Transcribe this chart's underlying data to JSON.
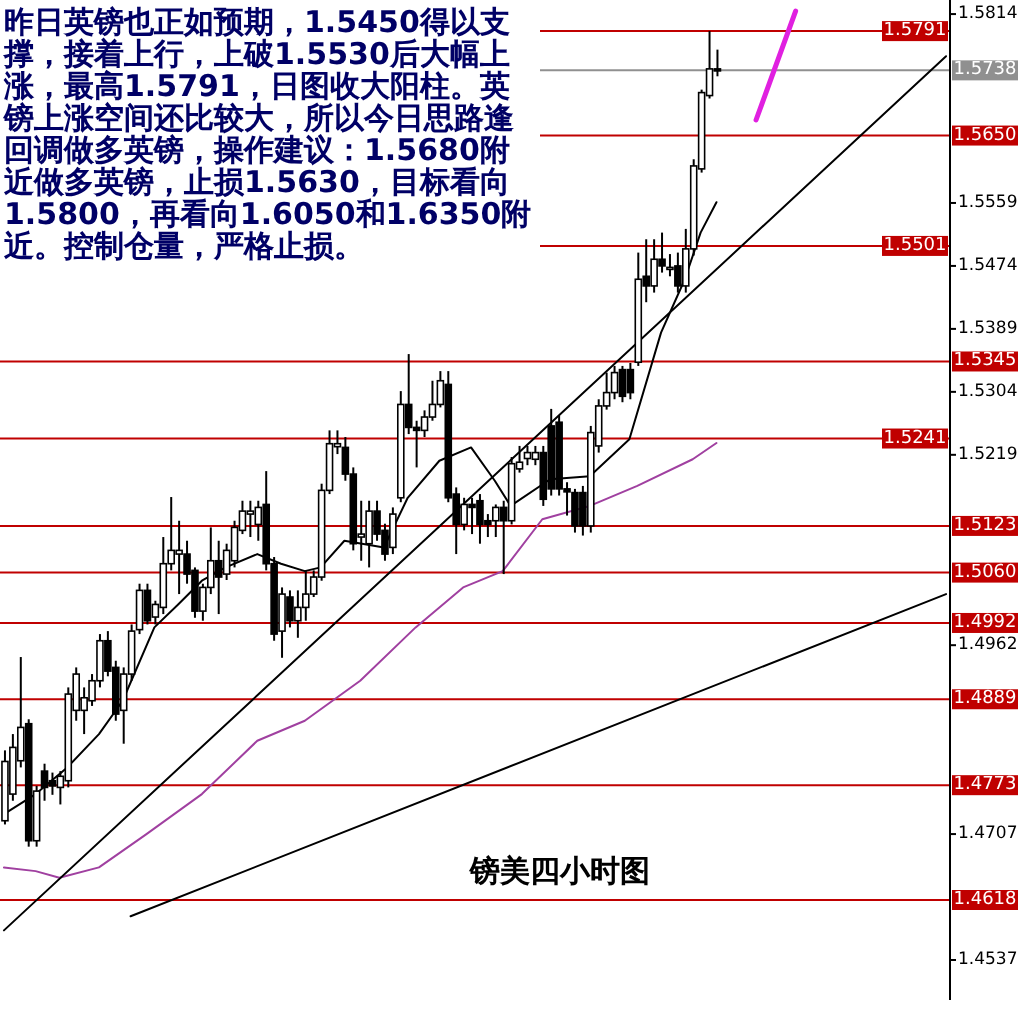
{
  "chart_data": {
    "type": "candlestick",
    "annotations": [
      "昨日英镑也正如预期，1.5450得以支撑，接着上行，上破1.5530后大幅上涨，最高1.5791，日图收大阳柱。英镑上涨空间还比较大，所以今日思路逢回调做多英镑，操作建议：1.5680附近做多英镑，止损1.5630，目标看向1.5800，再看向1.6050和1.6350附近。控制仓量，严格止损。",
      "镑美四小时图"
    ],
    "categories": [
      null,
      null,
      null,
      null,
      null,
      null,
      null,
      null,
      null,
      null,
      null,
      null,
      null,
      null,
      null,
      null,
      null,
      null,
      null,
      null,
      null,
      null,
      null,
      null,
      null,
      null,
      null,
      null,
      null,
      null,
      null,
      null,
      null,
      null,
      null,
      null,
      null,
      null,
      null,
      null,
      null,
      null,
      null,
      null,
      null,
      null,
      null,
      null,
      null,
      null,
      null,
      null,
      null,
      null,
      null,
      null,
      null,
      null,
      null,
      null,
      null,
      null,
      null,
      null,
      null,
      null,
      null,
      null,
      null,
      null,
      null,
      null,
      null,
      null,
      null,
      null,
      null,
      null,
      null,
      null,
      null,
      null,
      null,
      null,
      null,
      null,
      null,
      null,
      null,
      null,
      null,
      null,
      null,
      null,
      null,
      null,
      null,
      null,
      null,
      null,
      null,
      null,
      null,
      null,
      null,
      null,
      null,
      null,
      null,
      null,
      null,
      null,
      null,
      null,
      null,
      null,
      null,
      null,
      null,
      null
    ],
    "ohlc": [
      [
        1.4725,
        1.482,
        1.472,
        1.4805
      ],
      [
        1.4761,
        1.4842,
        1.4752,
        1.4824
      ],
      [
        1.4806,
        1.4946,
        1.4797,
        1.4851
      ],
      [
        1.4856,
        1.4862,
        1.469,
        1.4698
      ],
      [
        1.4698,
        1.4772,
        1.469,
        1.4765
      ],
      [
        1.4792,
        1.4802,
        1.4752,
        1.477
      ],
      [
        1.4779,
        1.479,
        1.476,
        1.4772
      ],
      [
        1.477,
        1.4792,
        1.4747,
        1.4785
      ],
      [
        1.4779,
        1.4905,
        1.477,
        1.4896
      ],
      [
        1.4874,
        1.4932,
        1.486,
        1.4923
      ],
      [
        1.4874,
        1.4905,
        1.4842,
        1.4891
      ],
      [
        1.4887,
        1.4923,
        1.488,
        1.4914
      ],
      [
        1.4914,
        1.4977,
        1.4905,
        1.4968
      ],
      [
        1.4968,
        1.4981,
        1.492,
        1.4927
      ],
      [
        1.4932,
        1.4941,
        1.486,
        1.4869
      ],
      [
        1.4874,
        1.4932,
        1.4829,
        1.4923
      ],
      [
        1.4923,
        1.499,
        1.4914,
        1.4981
      ],
      [
        1.4983,
        1.5045,
        1.4977,
        1.5036
      ],
      [
        1.5036,
        1.5045,
        1.499,
        1.4995
      ],
      [
        1.5,
        1.5022,
        1.499,
        1.5017
      ],
      [
        1.5013,
        1.5108,
        1.5004,
        1.5072
      ],
      [
        1.5072,
        1.5162,
        1.5063,
        1.509
      ],
      [
        1.5085,
        1.513,
        1.5031,
        1.509
      ],
      [
        1.5085,
        1.5103,
        1.5045,
        1.5058
      ],
      [
        1.5063,
        1.5067,
        1.4999,
        1.5008
      ],
      [
        1.5008,
        1.5045,
        1.4995,
        1.504
      ],
      [
        1.504,
        1.5121,
        1.5031,
        1.5076
      ],
      [
        1.5076,
        1.5103,
        1.5004,
        1.5054
      ],
      [
        1.5058,
        1.5099,
        1.505,
        1.509
      ],
      [
        1.5076,
        1.513,
        1.5067,
        1.5121
      ],
      [
        1.5117,
        1.5157,
        1.5112,
        1.5143
      ],
      [
        1.5139,
        1.5157,
        1.5108,
        1.5143
      ],
      [
        1.5125,
        1.5157,
        1.5103,
        1.5148
      ],
      [
        1.5152,
        1.5197,
        1.5063,
        1.5072
      ],
      [
        1.5072,
        1.5081,
        1.4968,
        1.4977
      ],
      [
        1.4981,
        1.504,
        1.4945,
        1.5031
      ],
      [
        1.5027,
        1.5036,
        1.4986,
        1.4995
      ],
      [
        1.4995,
        1.5036,
        1.4972,
        1.5013
      ],
      [
        1.5013,
        1.5063,
        1.4995,
        1.5031
      ],
      [
        1.5031,
        1.5063,
        1.5027,
        1.5054
      ],
      [
        1.5054,
        1.518,
        1.5049,
        1.5171
      ],
      [
        1.5171,
        1.5252,
        1.5166,
        1.5234
      ],
      [
        1.523,
        1.5252,
        1.522,
        1.5234
      ],
      [
        1.5229,
        1.5243,
        1.5184,
        1.5193
      ],
      [
        1.5193,
        1.5202,
        1.509,
        1.5099
      ],
      [
        1.5108,
        1.5157,
        1.5076,
        1.5112
      ],
      [
        1.5099,
        1.5157,
        1.5067,
        1.5143
      ],
      [
        1.5143,
        1.5157,
        1.5103,
        1.5112
      ],
      [
        1.5117,
        1.5126,
        1.5076,
        1.5085
      ],
      [
        1.5094,
        1.5148,
        1.5085,
        1.5139
      ],
      [
        1.5161,
        1.5305,
        1.5155,
        1.5287
      ],
      [
        1.5287,
        1.5355,
        1.5247,
        1.5256
      ],
      [
        1.5256,
        1.5265,
        1.5202,
        1.5252
      ],
      [
        1.5252,
        1.5279,
        1.5243,
        1.527
      ],
      [
        1.527,
        1.5319,
        1.5265,
        1.5287
      ],
      [
        1.5287,
        1.5332,
        1.5283,
        1.5319
      ],
      [
        1.5314,
        1.5332,
        1.5155,
        1.5161
      ],
      [
        1.5166,
        1.5175,
        1.5085,
        1.5125
      ],
      [
        1.5125,
        1.5161,
        1.5117,
        1.5152
      ],
      [
        1.5152,
        1.5161,
        1.5112,
        1.5148
      ],
      [
        1.5157,
        1.5166,
        1.5099,
        1.5125
      ],
      [
        1.513,
        1.5139,
        1.5108,
        1.5125
      ],
      [
        1.513,
        1.5152,
        1.5108,
        1.5148
      ],
      [
        1.5148,
        1.5157,
        1.5058,
        1.513
      ],
      [
        1.513,
        1.5216,
        1.5125,
        1.5207
      ],
      [
        1.52,
        1.5231,
        1.5195,
        1.5209
      ],
      [
        1.5214,
        1.5231,
        1.5205,
        1.5222
      ],
      [
        1.5213,
        1.5231,
        1.5205,
        1.5222
      ],
      [
        1.5222,
        1.5231,
        1.515,
        1.5159
      ],
      [
        1.5258,
        1.5281,
        1.5164,
        1.5173
      ],
      [
        1.5263,
        1.5272,
        1.5164,
        1.5173
      ],
      [
        1.5173,
        1.5182,
        1.5137,
        1.5169
      ],
      [
        1.5168,
        1.5173,
        1.5114,
        1.5123
      ],
      [
        1.5168,
        1.5177,
        1.511,
        1.5123
      ],
      [
        1.5123,
        1.5258,
        1.5114,
        1.5249
      ],
      [
        1.5231,
        1.5294,
        1.5222,
        1.5285
      ],
      [
        1.5285,
        1.533,
        1.528,
        1.5303
      ],
      [
        1.5303,
        1.5339,
        1.5294,
        1.533
      ],
      [
        1.5334,
        1.5339,
        1.529,
        1.5298
      ],
      [
        1.5334,
        1.5343,
        1.5294,
        1.5303
      ],
      [
        1.5344,
        1.5492,
        1.5339,
        1.5456
      ],
      [
        1.546,
        1.551,
        1.5425,
        1.5447
      ],
      [
        1.5447,
        1.551,
        1.5438,
        1.5483
      ],
      [
        1.5483,
        1.5519,
        1.5465,
        1.5474
      ],
      [
        1.547,
        1.549,
        1.546,
        1.5472
      ],
      [
        1.5474,
        1.5492,
        1.5438,
        1.5447
      ],
      [
        1.5447,
        1.5524,
        1.5438,
        1.5497
      ],
      [
        1.5497,
        1.5618,
        1.5488,
        1.5609
      ],
      [
        1.5605,
        1.5712,
        1.56,
        1.5708
      ],
      [
        1.5704,
        1.5791,
        1.57,
        1.574
      ],
      [
        1.574,
        1.5766,
        1.573,
        1.5738
      ],
      null,
      null,
      null,
      null,
      null,
      null,
      null,
      null,
      null,
      null,
      null,
      null,
      null,
      null,
      null,
      null,
      null,
      null,
      null,
      null,
      null,
      null,
      null,
      null,
      null,
      null,
      null,
      null,
      null
    ],
    "series": [
      {
        "type": "line",
        "color": "#000000",
        "values": [
          1.4734,
          null,
          null,
          null,
          1.4761,
          null,
          null,
          null,
          1.4797,
          null,
          null,
          null,
          1.4842,
          null,
          null,
          1.4887,
          null,
          null,
          null,
          1.4986,
          null,
          null,
          1.5017,
          null,
          null,
          1.5049,
          null,
          null,
          1.5067,
          null,
          null,
          null,
          1.5085,
          null,
          null,
          1.5072,
          null,
          null,
          1.5062,
          null,
          1.5067,
          null,
          null,
          1.5103,
          null,
          null,
          null,
          null,
          1.5094,
          null,
          null,
          1.5161,
          null,
          null,
          null,
          1.5211,
          null,
          null,
          null,
          1.5229,
          null,
          null,
          1.5184,
          null,
          1.515,
          null,
          null,
          null,
          null,
          1.5186,
          null,
          null,
          null,
          null,
          1.519,
          null,
          null,
          null,
          null,
          1.524,
          null,
          null,
          null,
          1.5384,
          null,
          null,
          1.5456,
          null,
          1.5519,
          null,
          1.556,
          null,
          null,
          null,
          null,
          null,
          null,
          null,
          null,
          null,
          null,
          null,
          null,
          null,
          null,
          null,
          null,
          null,
          null,
          null,
          null,
          null,
          null,
          null,
          null,
          null,
          null,
          null,
          null,
          null
        ]
      },
      {
        "type": "line",
        "color": "#a040a0",
        "values": [
          1.4662,
          null,
          null,
          null,
          1.4657,
          null,
          null,
          1.4648,
          null,
          null,
          null,
          null,
          1.4662,
          null,
          null,
          null,
          null,
          null,
          1.4707,
          null,
          null,
          null,
          null,
          null,
          null,
          1.4761,
          null,
          null,
          null,
          null,
          null,
          null,
          1.4833,
          null,
          null,
          null,
          null,
          null,
          1.486,
          null,
          null,
          null,
          null,
          null,
          null,
          1.4914,
          null,
          null,
          null,
          null,
          null,
          null,
          1.4986,
          null,
          null,
          null,
          null,
          null,
          1.504,
          null,
          null,
          null,
          null,
          1.5062,
          null,
          null,
          null,
          null,
          1.5132,
          null,
          null,
          null,
          null,
          null,
          1.515,
          null,
          null,
          null,
          null,
          null,
          1.5177,
          null,
          null,
          null,
          null,
          null,
          null,
          1.5213,
          null,
          null,
          1.5235,
          null,
          null,
          null,
          null,
          null,
          null,
          null,
          null,
          null,
          null,
          null,
          null,
          null,
          null,
          null,
          null,
          null,
          null,
          null,
          null,
          null,
          null,
          null,
          null,
          null,
          null,
          null,
          null,
          null
        ]
      },
      {
        "type": "line",
        "color": "#000000",
        "values": [
          1.4577,
          null,
          null,
          null,
          null,
          null,
          null,
          null,
          null,
          null,
          null,
          null,
          null,
          null,
          null,
          null,
          null,
          null,
          null,
          null,
          null,
          null,
          null,
          null,
          null,
          null,
          null,
          null,
          null,
          null,
          null,
          null,
          null,
          null,
          null,
          null,
          null,
          null,
          null,
          null,
          null,
          null,
          null,
          null,
          null,
          null,
          null,
          null,
          null,
          null,
          null,
          null,
          null,
          null,
          null,
          null,
          null,
          null,
          null,
          null,
          null,
          null,
          null,
          null,
          null,
          null,
          null,
          null,
          null,
          null,
          null,
          null,
          null,
          null,
          null,
          null,
          null,
          null,
          null,
          null,
          null,
          null,
          null,
          null,
          null,
          null,
          null,
          null,
          null,
          null,
          null,
          null,
          null,
          null,
          null,
          null,
          null,
          null,
          null,
          null,
          null,
          null,
          null,
          null,
          null,
          null,
          null,
          null,
          null,
          null,
          null,
          null,
          null,
          null,
          null,
          null,
          null,
          null,
          null,
          1.5757
        ]
      },
      {
        "type": "line",
        "color": "#000000",
        "values": [
          null,
          null,
          null,
          null,
          null,
          null,
          null,
          null,
          null,
          null,
          null,
          null,
          null,
          null,
          null,
          null,
          1.4596,
          null,
          null,
          null,
          null,
          null,
          null,
          null,
          null,
          null,
          null,
          null,
          null,
          null,
          null,
          null,
          null,
          null,
          null,
          null,
          null,
          null,
          null,
          null,
          null,
          null,
          null,
          null,
          null,
          null,
          null,
          null,
          null,
          null,
          null,
          null,
          null,
          null,
          null,
          null,
          null,
          null,
          null,
          null,
          null,
          null,
          null,
          null,
          null,
          null,
          null,
          null,
          null,
          null,
          null,
          null,
          null,
          null,
          null,
          null,
          null,
          null,
          null,
          null,
          null,
          null,
          null,
          null,
          null,
          null,
          null,
          null,
          null,
          null,
          null,
          null,
          null,
          null,
          null,
          null,
          null,
          null,
          null,
          null,
          null,
          null,
          null,
          null,
          null,
          null,
          null,
          null,
          null,
          null,
          null,
          null,
          null,
          null,
          null,
          null,
          null,
          null,
          null,
          1.5031
        ]
      },
      {
        "type": "line",
        "color": "#e020e0",
        "values": [
          null,
          null,
          null,
          null,
          null,
          null,
          null,
          null,
          null,
          null,
          null,
          null,
          null,
          null,
          null,
          null,
          null,
          null,
          null,
          null,
          null,
          null,
          null,
          null,
          null,
          null,
          null,
          null,
          null,
          null,
          null,
          null,
          null,
          null,
          null,
          null,
          null,
          null,
          null,
          null,
          null,
          null,
          null,
          null,
          null,
          null,
          null,
          null,
          null,
          null,
          null,
          null,
          null,
          null,
          null,
          null,
          null,
          null,
          null,
          null,
          null,
          null,
          null,
          null,
          null,
          null,
          null,
          null,
          null,
          null,
          null,
          null,
          null,
          null,
          null,
          null,
          null,
          null,
          null,
          null,
          null,
          null,
          null,
          null,
          null,
          null,
          null,
          null,
          null,
          null,
          null,
          null,
          null,
          null,
          null,
          1.5671,
          null,
          null,
          null,
          null,
          1.5818,
          null,
          null,
          null,
          null,
          null,
          null,
          null,
          null,
          null,
          null,
          null,
          null,
          null,
          null,
          null,
          null,
          null,
          null,
          null
        ]
      }
    ],
    "ylim": [
      1.4483,
      1.5833
    ],
    "yticks": [
      1.5814,
      1.5559,
      1.5474,
      1.5389,
      1.5304,
      1.5219,
      1.4962,
      1.4707,
      1.4537
    ],
    "tick_labels": "y",
    "ref_lines": [
      {
        "axis": "y",
        "value": 1.5791,
        "label": "1.5791",
        "color": "#c00000"
      },
      {
        "axis": "y",
        "value": 1.5738,
        "label": "1.5738",
        "color": "#909090"
      },
      {
        "axis": "y",
        "value": 1.565,
        "label": "1.5650",
        "color": "#c00000"
      },
      {
        "axis": "y",
        "value": 1.5501,
        "label": "1.5501",
        "color": "#c00000"
      },
      {
        "axis": "y",
        "value": 1.5345,
        "label": "1.5345",
        "color": "#c00000"
      },
      {
        "axis": "y",
        "value": 1.5241,
        "label": "1.5241",
        "color": "#c00000"
      },
      {
        "axis": "y",
        "value": 1.5123,
        "label": "1.5123",
        "color": "#c00000"
      },
      {
        "axis": "y",
        "value": 1.506,
        "label": "1.5060",
        "color": "#c00000"
      },
      {
        "axis": "y",
        "value": 1.4992,
        "label": "1.4992",
        "color": "#c00000"
      },
      {
        "axis": "y",
        "value": 1.4889,
        "label": "1.4889",
        "color": "#c00000"
      },
      {
        "axis": "y",
        "value": 1.4773,
        "label": "1.4773",
        "color": "#c00000"
      },
      {
        "axis": "y",
        "value": 1.4618,
        "label": "1.4618",
        "color": "#c00000"
      }
    ]
  }
}
